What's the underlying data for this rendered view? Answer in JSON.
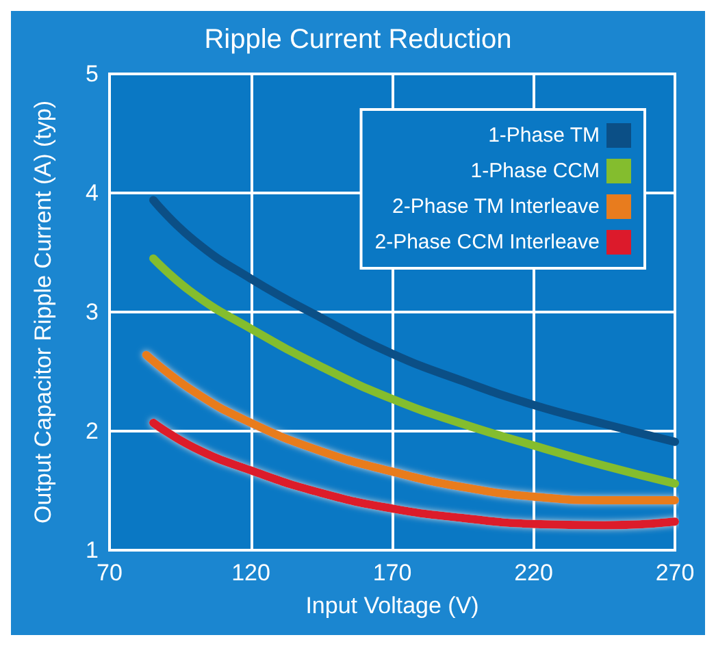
{
  "chart_data": {
    "type": "line",
    "title": "Ripple Current Reduction",
    "xlabel": "Input Voltage (V)",
    "ylabel": "Output Capacitor Ripple Current (A) (typ)",
    "xlim": [
      70,
      270
    ],
    "xticks": [
      70,
      120,
      170,
      220,
      270
    ],
    "ylim": [
      1,
      5
    ],
    "yticks": [
      1,
      2,
      3,
      4,
      5
    ],
    "grid": true,
    "legend": "top right",
    "marker": "none",
    "line_style": "solid",
    "series": [
      {
        "name": "1-Phase TM",
        "color": "#0b4f86",
        "x": [
          85.5,
          100,
          120,
          145,
          170,
          195,
          220,
          245,
          270
        ],
        "values": [
          3.94,
          3.6,
          3.28,
          2.95,
          2.65,
          2.42,
          2.22,
          2.06,
          1.91
        ]
      },
      {
        "name": "1-Phase CCM",
        "color": "#84bd2e",
        "x": [
          85.5,
          100,
          120,
          145,
          170,
          195,
          220,
          245,
          270
        ],
        "values": [
          3.45,
          3.15,
          2.86,
          2.54,
          2.27,
          2.06,
          1.88,
          1.71,
          1.56
        ]
      },
      {
        "name": "2-Phase TM Interleave",
        "color": "#e87c1e",
        "x": [
          83,
          100,
          120,
          145,
          170,
          195,
          220,
          245,
          270
        ],
        "values": [
          2.64,
          2.33,
          2.07,
          1.83,
          1.66,
          1.53,
          1.45,
          1.42,
          1.42
        ]
      },
      {
        "name": "2-Phase CCM Interleave",
        "color": "#dc1a2b",
        "x": [
          85.5,
          100,
          120,
          145,
          170,
          195,
          220,
          245,
          270
        ],
        "values": [
          2.07,
          1.86,
          1.67,
          1.48,
          1.35,
          1.27,
          1.22,
          1.21,
          1.24
        ]
      }
    ]
  }
}
